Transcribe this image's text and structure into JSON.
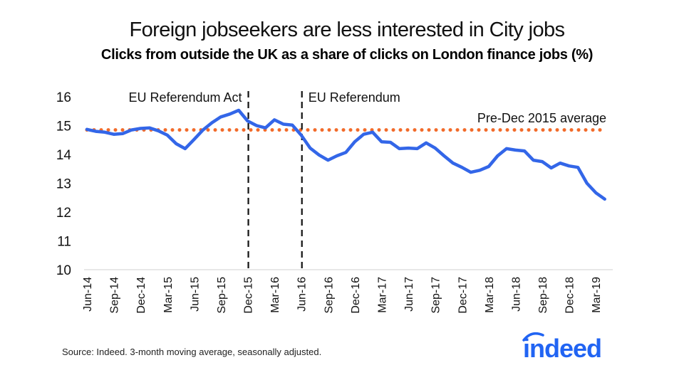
{
  "title": "Foreign jobseekers are less interested in City jobs",
  "subtitle": "Clicks from outside the UK as a share of clicks on London finance jobs (%)",
  "source": "Source: Indeed. 3-month moving average, seasonally adjusted.",
  "logo": {
    "text": "indeed",
    "color": "#2164f3"
  },
  "colors": {
    "series": "#3366e8",
    "average": "#f26b2a",
    "events": "#111111",
    "axis": "#d0d0d0"
  },
  "annotations": {
    "event1": {
      "label": "EU Referendum Act",
      "x": "Dec-15"
    },
    "event2": {
      "label": "EU Referendum",
      "x": "Jun-16"
    },
    "average": {
      "label": "Pre-Dec 2015 average",
      "value": 14.85
    }
  },
  "chart_data": {
    "type": "line",
    "title": "Foreign jobseekers are less interested in City jobs",
    "subtitle": "Clicks from outside the UK as a share of clicks on London finance jobs (%)",
    "xlabel": "",
    "ylabel": "",
    "ylim": [
      10,
      16
    ],
    "yticks": [
      10,
      11,
      12,
      13,
      14,
      15,
      16
    ],
    "xtick_labels": [
      "Jun-14",
      "Sep-14",
      "Dec-14",
      "Mar-15",
      "Jun-15",
      "Sep-15",
      "Dec-15",
      "Mar-16",
      "Jun-16",
      "Sep-16",
      "Dec-16",
      "Mar-17",
      "Jun-17",
      "Sep-17",
      "Dec-17",
      "Mar-18",
      "Jun-18",
      "Sep-18",
      "Dec-18",
      "Mar-19"
    ],
    "grid": false,
    "legend": "none",
    "x": [
      "Jun-14",
      "Jul-14",
      "Aug-14",
      "Sep-14",
      "Oct-14",
      "Nov-14",
      "Dec-14",
      "Jan-15",
      "Feb-15",
      "Mar-15",
      "Apr-15",
      "May-15",
      "Jun-15",
      "Jul-15",
      "Aug-15",
      "Sep-15",
      "Oct-15",
      "Nov-15",
      "Dec-15",
      "Jan-16",
      "Feb-16",
      "Mar-16",
      "Apr-16",
      "May-16",
      "Jun-16",
      "Jul-16",
      "Aug-16",
      "Sep-16",
      "Oct-16",
      "Nov-16",
      "Dec-16",
      "Jan-17",
      "Feb-17",
      "Mar-17",
      "Apr-17",
      "May-17",
      "Jun-17",
      "Jul-17",
      "Aug-17",
      "Sep-17",
      "Oct-17",
      "Nov-17",
      "Dec-17",
      "Jan-18",
      "Feb-18",
      "Mar-18",
      "Apr-18",
      "May-18",
      "Jun-18",
      "Jul-18",
      "Aug-18",
      "Sep-18",
      "Oct-18",
      "Nov-18",
      "Dec-18",
      "Jan-19",
      "Feb-19",
      "Mar-19",
      "Apr-19"
    ],
    "series": [
      {
        "name": "Clicks from outside the UK (%)",
        "values": [
          14.87,
          14.8,
          14.77,
          14.7,
          14.72,
          14.85,
          14.9,
          14.92,
          14.82,
          14.67,
          14.37,
          14.2,
          14.52,
          14.85,
          15.1,
          15.3,
          15.4,
          15.53,
          15.16,
          15.0,
          14.92,
          15.2,
          15.05,
          15.02,
          14.67,
          14.22,
          13.98,
          13.8,
          13.95,
          14.07,
          14.44,
          14.7,
          14.77,
          14.44,
          14.42,
          14.2,
          14.22,
          14.2,
          14.4,
          14.22,
          13.95,
          13.7,
          13.55,
          13.38,
          13.45,
          13.58,
          13.95,
          14.2,
          14.15,
          14.12,
          13.8,
          13.75,
          13.53,
          13.7,
          13.6,
          13.55,
          13.0,
          12.67,
          12.45
        ]
      },
      {
        "name": "Pre-Dec 2015 average",
        "style": "dotted",
        "values_constant": 14.85
      }
    ],
    "vertical_lines": [
      {
        "x": "Dec-15",
        "label": "EU Referendum Act",
        "style": "dashed"
      },
      {
        "x": "Jun-16",
        "label": "EU Referendum",
        "style": "dashed"
      }
    ]
  }
}
